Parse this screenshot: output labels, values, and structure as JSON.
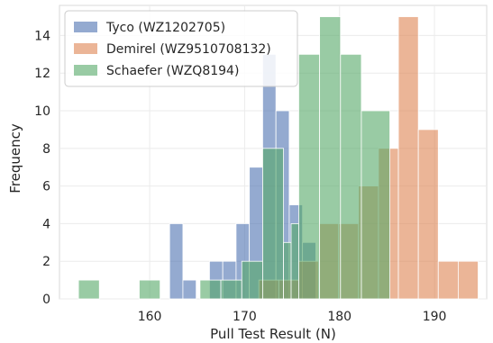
{
  "chart_data": {
    "type": "bar",
    "subtype": "overlaid-histogram",
    "xlabel": "Pull Test Result (N)",
    "ylabel": "Frequency",
    "xlim": [
      150.5,
      195.5
    ],
    "ylim": [
      0,
      15.6
    ],
    "xticks": [
      160,
      170,
      180,
      190
    ],
    "yticks": [
      0,
      2,
      4,
      6,
      8,
      10,
      12,
      14
    ],
    "grid": true,
    "legend_position": "top-left",
    "series": [
      {
        "name": "Tyco (WZ1202705)",
        "color": "#4C72B0",
        "bins": [
          {
            "x0": 162.1,
            "x1": 163.5,
            "count": 4
          },
          {
            "x0": 163.5,
            "x1": 164.9,
            "count": 1
          },
          {
            "x0": 166.3,
            "x1": 167.7,
            "count": 2
          },
          {
            "x0": 167.7,
            "x1": 169.1,
            "count": 2
          },
          {
            "x0": 169.1,
            "x1": 170.5,
            "count": 4
          },
          {
            "x0": 170.5,
            "x1": 171.9,
            "count": 7
          },
          {
            "x0": 171.9,
            "x1": 173.3,
            "count": 13
          },
          {
            "x0": 173.3,
            "x1": 174.7,
            "count": 10
          },
          {
            "x0": 174.7,
            "x1": 176.1,
            "count": 5
          },
          {
            "x0": 176.1,
            "x1": 177.5,
            "count": 3
          }
        ]
      },
      {
        "name": "Demirel (WZ9510708132)",
        "color": "#DD8452",
        "bins": [
          {
            "x0": 171.5,
            "x1": 173.6,
            "count": 1
          },
          {
            "x0": 173.6,
            "x1": 175.7,
            "count": 1
          },
          {
            "x0": 175.7,
            "x1": 177.8,
            "count": 2
          },
          {
            "x0": 177.8,
            "x1": 179.9,
            "count": 4
          },
          {
            "x0": 179.9,
            "x1": 182.0,
            "count": 4
          },
          {
            "x0": 182.0,
            "x1": 184.1,
            "count": 6
          },
          {
            "x0": 184.1,
            "x1": 186.2,
            "count": 8
          },
          {
            "x0": 186.2,
            "x1": 188.3,
            "count": 15
          },
          {
            "x0": 188.3,
            "x1": 190.4,
            "count": 9
          },
          {
            "x0": 190.4,
            "x1": 192.5,
            "count": 2
          },
          {
            "x0": 192.5,
            "x1": 194.6,
            "count": 2
          }
        ]
      },
      {
        "name": "Schaefer (WZQ8194)",
        "color": "#55A868",
        "bins": [
          {
            "x0": 152.5,
            "x1": 154.7,
            "count": 1
          },
          {
            "x0": 158.9,
            "x1": 161.1,
            "count": 1
          },
          {
            "x0": 165.3,
            "x1": 167.5,
            "count": 1
          },
          {
            "x0": 167.5,
            "x1": 169.7,
            "count": 1
          },
          {
            "x0": 169.7,
            "x1": 171.9,
            "count": 2
          },
          {
            "x0": 171.9,
            "x1": 174.1,
            "count": 8
          },
          {
            "x0": 174.1,
            "x1": 174.9,
            "count": 3
          },
          {
            "x0": 174.9,
            "x1": 175.7,
            "count": 4
          },
          {
            "x0": 175.7,
            "x1": 177.9,
            "count": 13
          },
          {
            "x0": 177.9,
            "x1": 180.1,
            "count": 15
          },
          {
            "x0": 180.1,
            "x1": 182.3,
            "count": 13
          },
          {
            "x0": 182.3,
            "x1": 185.3,
            "count": 10
          }
        ]
      }
    ]
  }
}
